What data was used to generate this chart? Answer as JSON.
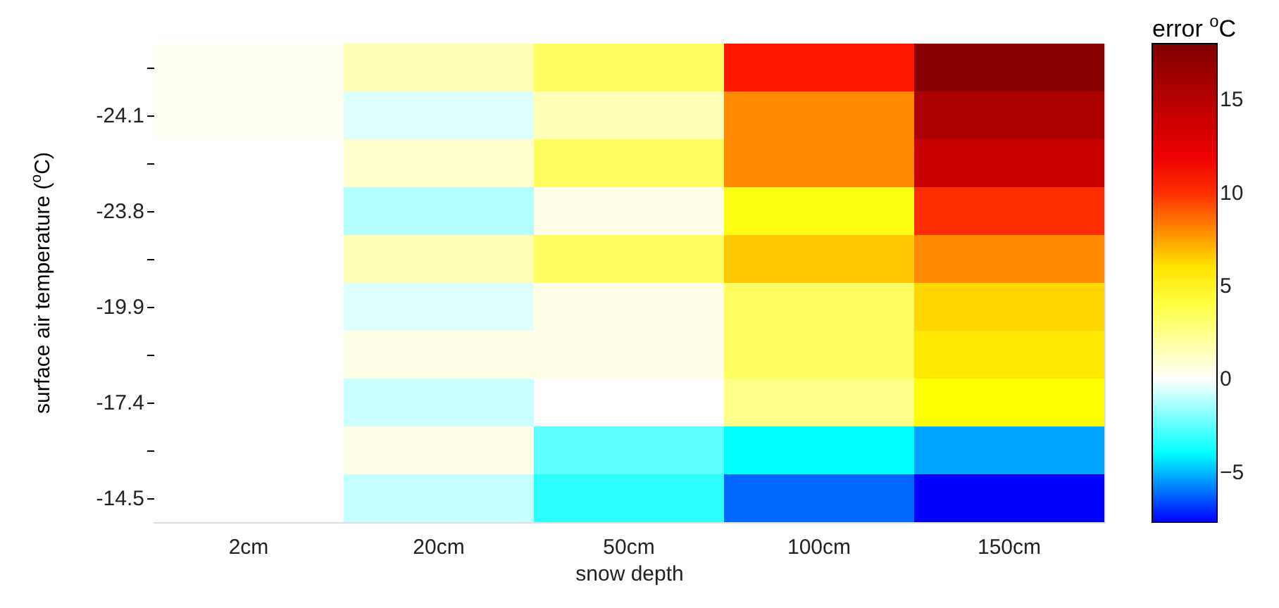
{
  "chart_data": {
    "type": "heatmap",
    "xlabel": "snow depth",
    "ylabel": "surface air temperature ($^{o}$C)",
    "legend_title": "error $^{o}$C",
    "categories": [
      "2cm",
      "20cm",
      "50cm",
      "100cm",
      "150cm"
    ],
    "y_categories": [
      null,
      "-24.1",
      null,
      "-23.8",
      null,
      "-19.9",
      null,
      "-17.4",
      null,
      "-14.5"
    ],
    "cells": [
      [
        0.3,
        1.5,
        3.3,
        10.5,
        17.5
      ],
      [
        0.3,
        -0.5,
        1.5,
        8,
        15.5
      ],
      [
        0,
        1,
        3.3,
        8,
        14
      ],
      [
        0,
        -1.2,
        0.5,
        5,
        10
      ],
      [
        0,
        1.5,
        3.3,
        6.6,
        8
      ],
      [
        0,
        -0.5,
        0.5,
        3.3,
        6.3
      ],
      [
        0,
        0.5,
        0.5,
        3.3,
        5.9
      ],
      [
        0,
        -0.8,
        0,
        2.5,
        5.4
      ],
      [
        0,
        0.5,
        -2.5,
        -4,
        -5.3
      ],
      [
        0,
        -0.9,
        -3.3,
        -6.2,
        -7.7
      ]
    ],
    "clim": [
      -7.7,
      18
    ],
    "cticks": [
      -5,
      0,
      5,
      10,
      15
    ],
    "grid": false
  }
}
